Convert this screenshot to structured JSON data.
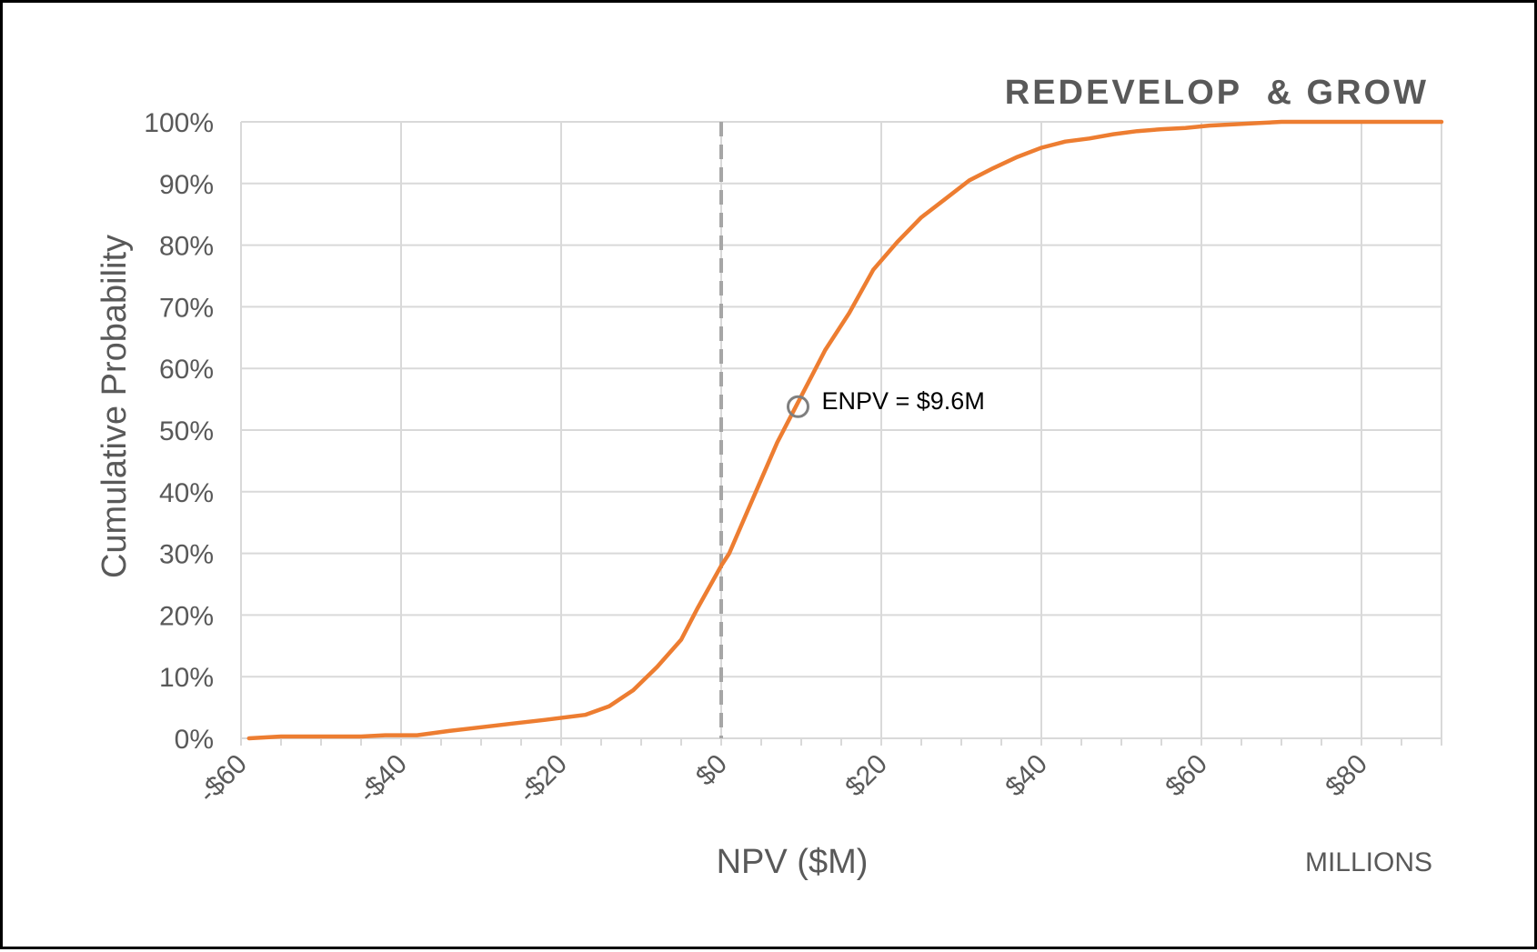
{
  "chart_data": {
    "type": "line",
    "title": "REDEVELOP  & GROW",
    "xlabel": "NPV ($M)",
    "ylabel": "Cumulative Probability",
    "x_units_label": "MILLIONS",
    "xlim": [
      -60,
      90
    ],
    "ylim": [
      0,
      100
    ],
    "x_ticks": [
      -60,
      -40,
      -20,
      0,
      20,
      40,
      60,
      80
    ],
    "x_tick_labels": [
      "-$60",
      "-$40",
      "-$20",
      "$0",
      "$20",
      "$40",
      "$60",
      "$80"
    ],
    "y_ticks": [
      0,
      10,
      20,
      30,
      40,
      50,
      60,
      70,
      80,
      90,
      100
    ],
    "y_tick_labels": [
      "0%",
      "10%",
      "20%",
      "30%",
      "40%",
      "50%",
      "60%",
      "70%",
      "80%",
      "90%",
      "100%"
    ],
    "grid": true,
    "legend": "none",
    "series": [
      {
        "color": "#ED7D31",
        "x": [
          -59,
          -55,
          -50,
          -45,
          -42,
          -38,
          -34,
          -30,
          -26,
          -22,
          -17,
          -14,
          -11,
          -8,
          -5,
          -3,
          0,
          1,
          3,
          5,
          7,
          9,
          11,
          13,
          16,
          19,
          22,
          25,
          28,
          31,
          34,
          37,
          40,
          43,
          46,
          49,
          52,
          55,
          58,
          61,
          64,
          67,
          70,
          75,
          80,
          85,
          90
        ],
        "y": [
          0,
          0.3,
          0.3,
          0.3,
          0.5,
          0.5,
          1.2,
          1.8,
          2.4,
          3.0,
          3.8,
          5.2,
          7.8,
          11.6,
          16,
          21,
          28,
          30,
          36,
          42,
          48,
          53,
          58,
          63,
          69,
          76,
          80.5,
          84.5,
          87.5,
          90.5,
          92.5,
          94.3,
          95.8,
          96.8,
          97.3,
          98,
          98.5,
          98.8,
          99,
          99.4,
          99.6,
          99.8,
          100,
          100,
          100,
          100,
          100
        ]
      }
    ],
    "reference_line": {
      "x": 0,
      "style": "dashed",
      "color": "#A6A6A6"
    },
    "annotations": [
      {
        "text": "ENPV = $9.6M",
        "x": 9.6,
        "y": 53.8
      }
    ]
  }
}
